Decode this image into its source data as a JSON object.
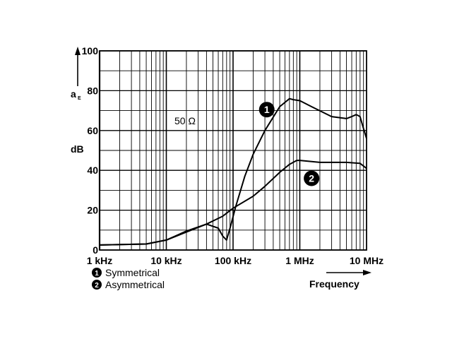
{
  "chart_data": {
    "type": "line",
    "title": "",
    "xlabel": "Frequency",
    "ylabel": "dB",
    "ylabel_symbol": "a",
    "ylabel_symbol_sub": "E",
    "x_scale": "log",
    "xlim_hz": [
      1000,
      10000000
    ],
    "ylim": [
      0,
      100
    ],
    "x_ticks": [
      {
        "value": 1000,
        "label": "1 kHz"
      },
      {
        "value": 10000,
        "label": "10 kHz"
      },
      {
        "value": 100000,
        "label": "100 kHz"
      },
      {
        "value": 1000000,
        "label": "1 MHz"
      },
      {
        "value": 10000000,
        "label": "10 MHz"
      }
    ],
    "y_ticks": [
      0,
      20,
      40,
      60,
      80,
      100
    ],
    "grid": true,
    "annotation": "50 Ω",
    "series": [
      {
        "name": "Symmetrical",
        "marker": "1",
        "x_hz": [
          1000,
          5000,
          10000,
          20000,
          40000,
          60000,
          70000,
          80000,
          90000,
          110000,
          150000,
          200000,
          300000,
          500000,
          700000,
          800000,
          1000000,
          1500000,
          3000000,
          5000000,
          6000000,
          7000000,
          8000000,
          9000000,
          10000000
        ],
        "values": [
          2.5,
          3,
          5,
          9,
          13,
          11,
          7,
          5,
          11,
          22,
          37,
          48,
          60,
          72,
          76,
          75.5,
          75,
          72,
          67,
          66,
          67,
          68,
          67,
          61,
          56
        ]
      },
      {
        "name": "Asymmetrical",
        "marker": "2",
        "x_hz": [
          1000,
          5000,
          10000,
          20000,
          40000,
          70000,
          100000,
          200000,
          300000,
          500000,
          700000,
          900000,
          1000000,
          2000000,
          5000000,
          8000000,
          10000000
        ],
        "values": [
          2.5,
          3,
          5,
          9.5,
          13,
          17,
          21,
          27,
          32,
          39,
          43,
          45,
          45,
          44,
          44,
          43.5,
          41
        ]
      }
    ],
    "legend": [
      {
        "marker": "1",
        "label": "Symmetrical"
      },
      {
        "marker": "2",
        "label": "Asymmetrical"
      }
    ]
  }
}
